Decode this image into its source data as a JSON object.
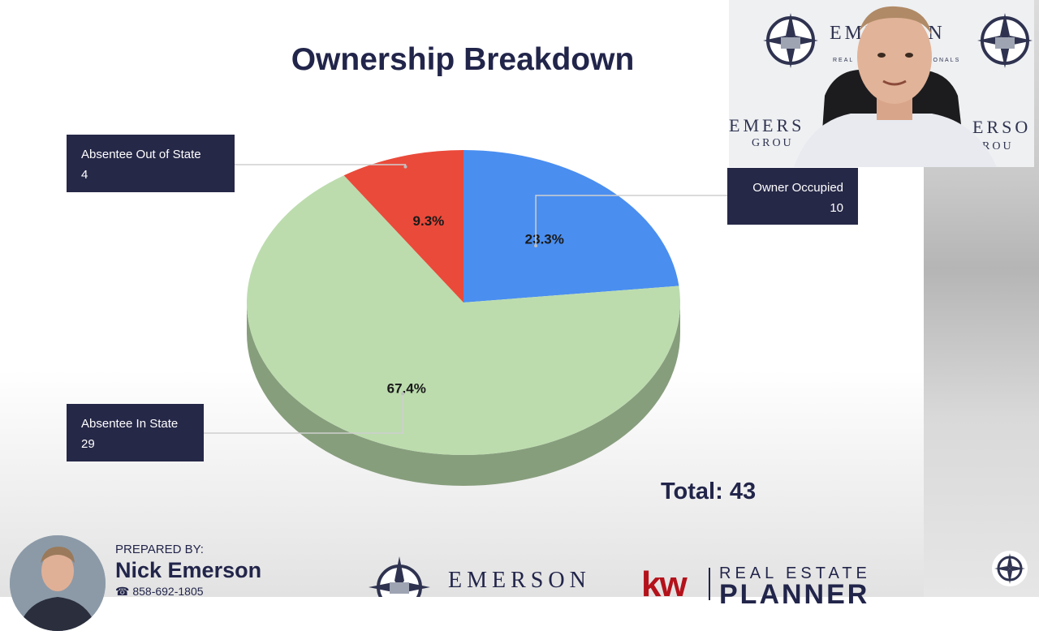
{
  "chart_data": {
    "type": "pie",
    "title": "Ownership Breakdown",
    "slices": [
      {
        "label": "Owner Occupied",
        "value": 10,
        "percent": "23.3%",
        "color": "#4a8ef0"
      },
      {
        "label": "Absentee In State",
        "value": 29,
        "percent": "67.4%",
        "color": "#bcdcae"
      },
      {
        "label": "Absentee Out of State",
        "value": 4,
        "percent": "9.3%",
        "color": "#ea4a3a"
      }
    ],
    "total_label": "Total: 43"
  },
  "labels": {
    "owner_occupied": {
      "name": "Owner Occupied",
      "value": "10"
    },
    "absentee_in_state": {
      "name": "Absentee In State",
      "value": "29"
    },
    "absentee_out_of_state": {
      "name": "Absentee Out of State",
      "value": "4"
    }
  },
  "footer": {
    "prepared_by": "PREPARED BY:",
    "name": "Nick Emerson",
    "phone": "858-692-1805",
    "company": "EMERSON",
    "kw": "kw",
    "re_line": "REAL ESTATE",
    "planner": "PLANNER"
  },
  "webcam": {
    "brand_top": "EMERSON",
    "brand_sub": "REAL ESTATE PROFESSIONALS",
    "brand_left": "EMERS",
    "brand_left_sub": "GROU",
    "brand_right": "ERSO",
    "brand_right_sub": "ROU"
  },
  "colors": {
    "navy": "#262848",
    "accent_red": "#b4121b"
  }
}
